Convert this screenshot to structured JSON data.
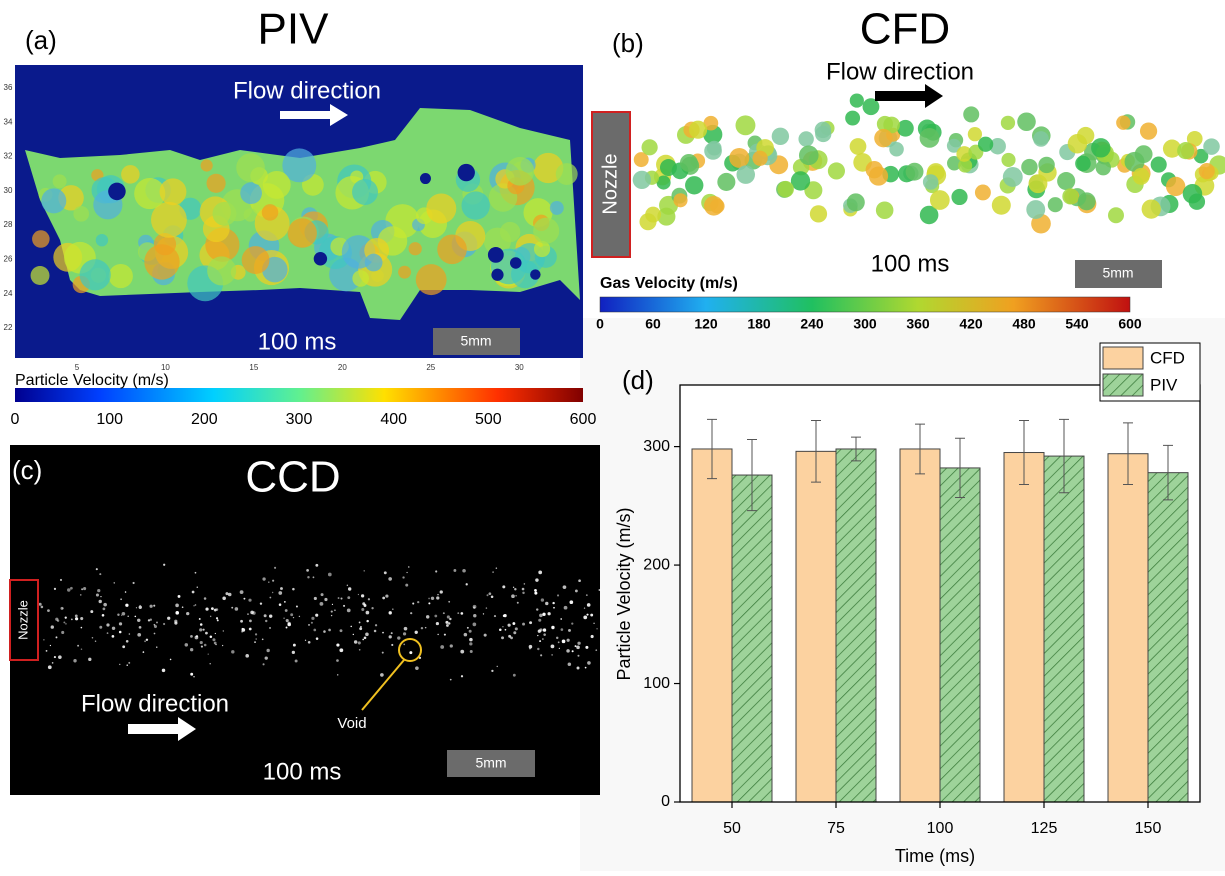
{
  "panels": {
    "a": {
      "label": "(a)",
      "title": "PIV",
      "annotation": "Flow direction",
      "time": "100 ms",
      "scale_bar": "5mm",
      "xlim": [
        1.5,
        33.6
      ],
      "xticks": [
        5,
        10,
        15,
        20,
        25,
        30
      ],
      "ylim": [
        20.25,
        37.34
      ],
      "yticks": [
        22,
        24,
        26,
        28,
        30,
        32,
        34,
        36
      ],
      "colorbar": {
        "label": "Particle Velocity (m/s)",
        "lim": [
          0,
          600
        ],
        "ticks": [
          0,
          100,
          200,
          300,
          400,
          500,
          600
        ]
      }
    },
    "b": {
      "label": "(b)",
      "title": "CFD",
      "annotation": "Flow direction",
      "nozzle": "Nozzle",
      "time": "100 ms",
      "scale_bar": "5mm",
      "colorbar": {
        "label": "Gas Velocity (m/s)",
        "lim": [
          0,
          600
        ],
        "ticks": [
          0,
          60,
          120,
          180,
          240,
          300,
          360,
          420,
          480,
          540,
          600
        ]
      }
    },
    "c": {
      "label": "(c)",
      "title": "CCD",
      "nozzle": "Nozzle",
      "annotation": "Flow direction",
      "void": "Void",
      "time": "100 ms",
      "scale_bar": "5mm"
    }
  },
  "chart_data": {
    "type": "bar",
    "label": "(d)",
    "x_label": "Time (ms)",
    "y_label": "Particle Velocity (m/s)",
    "categories": [
      "50",
      "75",
      "100",
      "125",
      "150"
    ],
    "series": [
      {
        "name": "CFD",
        "color": "#fcd2a0",
        "values": [
          298,
          296,
          298,
          295,
          294
        ],
        "errors": [
          25,
          26,
          21,
          27,
          26
        ]
      },
      {
        "name": "PIV",
        "color": "#9ed39a",
        "hatch": true,
        "values": [
          276,
          298,
          282,
          292,
          278
        ],
        "errors": [
          30,
          10,
          25,
          31,
          23
        ]
      }
    ],
    "ylim": [
      0,
      352
    ],
    "yticks": [
      0,
      100,
      200,
      300
    ],
    "legend": "top-right"
  }
}
